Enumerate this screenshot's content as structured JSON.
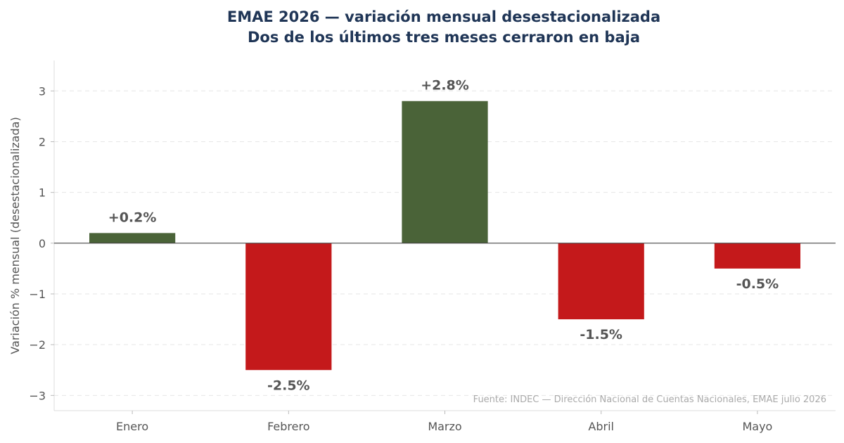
{
  "chart_data": {
    "type": "bar",
    "title": "EMAE 2026 — variación mensual desestacionalizada",
    "subtitle": "Dos de los últimos tres meses cerraron en baja",
    "ylabel": "Variación % mensual (desestacionalizada)",
    "xlabel": "",
    "categories": [
      "Enero",
      "Febrero",
      "Marzo",
      "Abril",
      "Mayo"
    ],
    "values": [
      0.2,
      -2.5,
      2.8,
      -1.5,
      -0.5
    ],
    "data_labels": [
      "+0.2%",
      "-2.5%",
      "+2.8%",
      "-1.5%",
      "-0.5%"
    ],
    "ylim": [
      -3.3,
      3.6
    ],
    "yticks": [
      -3,
      -2,
      -1,
      0,
      1,
      2,
      3
    ],
    "ytick_labels": [
      "−3",
      "−2",
      "−1",
      "0",
      "1",
      "2",
      "3"
    ],
    "grid": "horizontal-dashed",
    "colors": {
      "positive": "#4a6338",
      "negative": "#c4191b",
      "title": "#1f3556"
    },
    "source": "Fuente: INDEC — Dirección Nacional de Cuentas Nacionales, EMAE julio 2026"
  }
}
